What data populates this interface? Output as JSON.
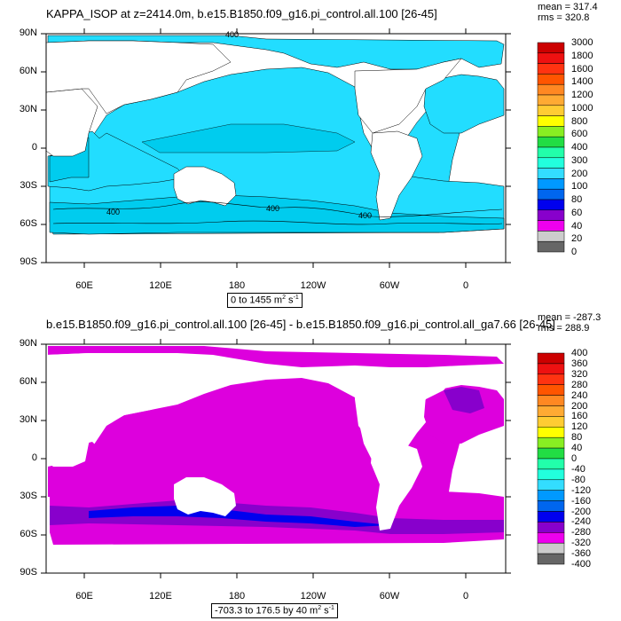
{
  "chart_data": [
    {
      "type": "contour-map",
      "title": "KAPPA_ISOP at z=2414.0m, b.e15.B1850.f09_g16.pi_control.all.100 [26-45]",
      "stats": {
        "mean": "mean = 317.4",
        "rms": "rms = 320.8"
      },
      "range_label_pre": "0 to 1455 m",
      "range_label_sup": "2",
      "range_label_mid": " s",
      "range_label_sup2": "-1",
      "y_ticks": [
        "90N",
        "60N",
        "30N",
        "0",
        "30S",
        "60S",
        "90S"
      ],
      "x_ticks": [
        "60E",
        "120E",
        "180",
        "120W",
        "60W",
        "0"
      ],
      "contour_labels": [
        "400",
        "400",
        "400",
        "400"
      ],
      "colorbar_labels": [
        "3000",
        "1800",
        "1600",
        "1400",
        "1200",
        "1000",
        "800",
        "600",
        "400",
        "300",
        "200",
        "100",
        "80",
        "60",
        "40",
        "20",
        "0"
      ],
      "colorbar_colors": [
        "#cc0000",
        "#ee1111",
        "#ff3311",
        "#ff5500",
        "#ff8822",
        "#ffaa33",
        "#ffcc33",
        "#ffff00",
        "#88ee22",
        "#22dd44",
        "#22ffaa",
        "#22ffdd",
        "#33ddff",
        "#0099ff",
        "#0066ee",
        "#0000ee",
        "#8800cc",
        "#ee00ee",
        "#cccccc",
        "#666666"
      ],
      "ocean_color": "#22ddff"
    },
    {
      "type": "contour-map",
      "title": "b.e15.B1850.f09_g16.pi_control.all.100 [26-45] - b.e15.B1850.f09_g16.pi_control.all_ga7.66 [26-45]",
      "stats": {
        "mean": "mean = -287.3",
        "rms": "rms = 288.9"
      },
      "range_label_pre": "-703.3 to 176.5 by 40 m",
      "range_label_sup": "2",
      "range_label_mid": " s",
      "range_label_sup2": "-1",
      "y_ticks": [
        "90N",
        "60N",
        "30N",
        "0",
        "30S",
        "60S",
        "90S"
      ],
      "x_ticks": [
        "60E",
        "120E",
        "180",
        "120W",
        "60W",
        "0"
      ],
      "colorbar_labels": [
        "400",
        "360",
        "320",
        "280",
        "240",
        "200",
        "160",
        "120",
        "80",
        "40",
        "0",
        "-40",
        "-80",
        "-120",
        "-160",
        "-200",
        "-240",
        "-280",
        "-320",
        "-360",
        "-400"
      ],
      "colorbar_colors": [
        "#cc0000",
        "#ee1111",
        "#ff3311",
        "#ff5500",
        "#ff8822",
        "#ffaa33",
        "#ffcc33",
        "#ffff00",
        "#88ee22",
        "#22dd44",
        "#22ffaa",
        "#22ffdd",
        "#33ddff",
        "#0099ff",
        "#0066ee",
        "#0000ee",
        "#8800cc",
        "#ee00ee",
        "#cccccc",
        "#666666"
      ],
      "ocean_color": "#dd00dd"
    }
  ]
}
